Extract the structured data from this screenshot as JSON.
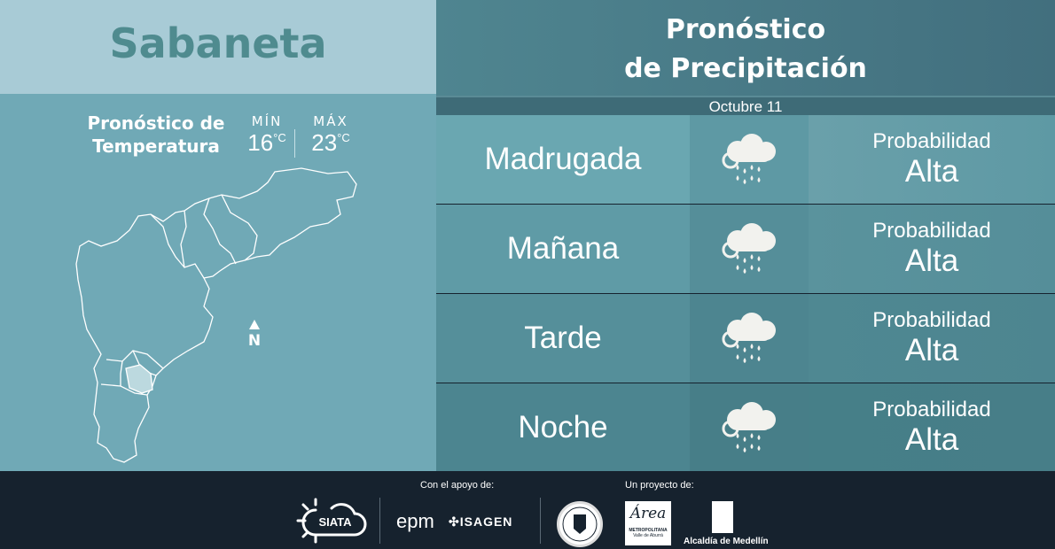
{
  "location": "Sabaneta",
  "temperature": {
    "title_line1": "Pronóstico de",
    "title_line2": "Temperatura",
    "min_label": "MÍN",
    "min_value": "16",
    "max_label": "MÁX",
    "max_value": "23",
    "unit": "°C"
  },
  "map": {
    "north_label": "N"
  },
  "precipitation": {
    "title_line1": "Pronóstico",
    "title_line2": "de Precipitación",
    "date": "Octubre 11",
    "rows": [
      {
        "period": "Madrugada",
        "icon": "cloud-rain-icon",
        "label": "Probabilidad",
        "level": "Alta"
      },
      {
        "period": "Mañana",
        "icon": "cloud-rain-icon",
        "label": "Probabilidad",
        "level": "Alta"
      },
      {
        "period": "Tarde",
        "icon": "cloud-rain-icon",
        "label": "Probabilidad",
        "level": "Alta"
      },
      {
        "period": "Noche",
        "icon": "cloud-rain-icon",
        "label": "Probabilidad",
        "level": "Alta"
      }
    ]
  },
  "footer": {
    "support_label": "Con el apoyo de:",
    "project_label": "Un proyecto de:",
    "logos": {
      "siata": "SIATA",
      "epm": "epm",
      "isagen": "ISAGEN",
      "area_line1": "METROPOLITANA",
      "area_line2": "Valle de Aburrá",
      "area_script": "Área",
      "alcaldia": "Alcaldía de Medellín"
    }
  },
  "colors": {
    "title": "#4f8b8f",
    "left_panel": "#70a9b6",
    "header": "#457584",
    "footer": "#16222e"
  }
}
